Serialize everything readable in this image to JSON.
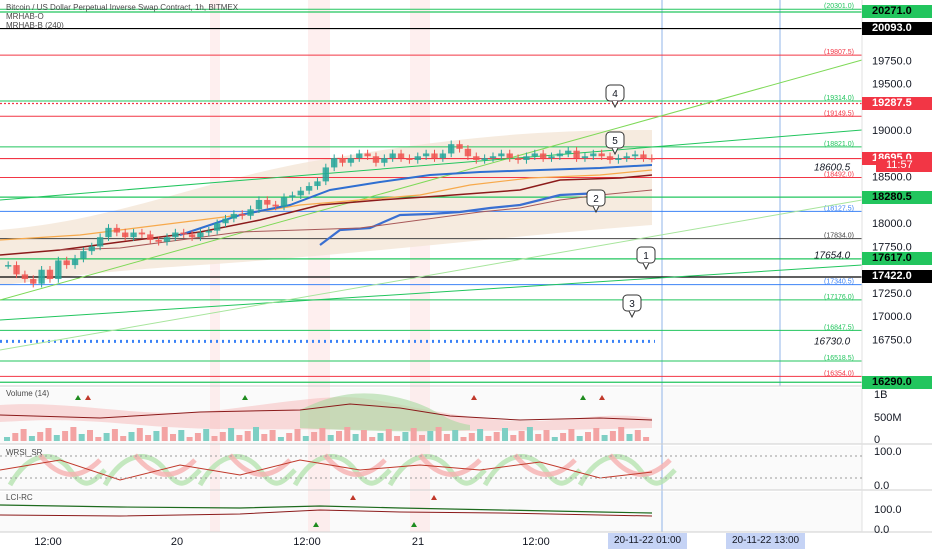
{
  "header": {
    "title": "Bitcoin / US Dollar Perpetual Inverse Swap Contract, 1h, BITMEX",
    "ind1": "MRHAB-O",
    "ind2": "MRHAB-B (240)"
  },
  "chart_data": {
    "type": "candlestick",
    "title": "Bitcoin / US Dollar Perpetual Inverse Swap Contract, 1h, BITMEX",
    "ylim": [
      16250,
      20400
    ],
    "y_ticks": [
      "19750.0",
      "19500.0",
      "19000.0",
      "18500.0",
      "18000.0",
      "17750.0",
      "17250.0",
      "17000.0",
      "16750.0"
    ],
    "y_tick_values": [
      19750,
      19500,
      19000,
      18500,
      18000,
      17750,
      17250,
      17000,
      16750
    ],
    "x_ticks": [
      "12:00",
      "20",
      "12:00",
      "21",
      "12:00"
    ],
    "price_tags": [
      {
        "text": "20271.0",
        "value": 20271,
        "bg": "#22c55e",
        "fg": "#000000"
      },
      {
        "text": "20093.0",
        "value": 20093,
        "bg": "#000000",
        "fg": "#ffffff"
      },
      {
        "text": "19287.5",
        "value": 19287.5,
        "bg": "#f23645",
        "fg": "#ffffff"
      },
      {
        "text": "18695.0",
        "value": 18695,
        "bg": "#f23645",
        "fg": "#ffffff"
      },
      {
        "text": "11:57",
        "value": 18625,
        "bg": "#f23645",
        "fg": "#ffffff"
      },
      {
        "text": "18280.5",
        "value": 18280.5,
        "bg": "#22c55e",
        "fg": "#000000"
      },
      {
        "text": "17617.0",
        "value": 17617,
        "bg": "#22c55e",
        "fg": "#000000"
      },
      {
        "text": "17422.0",
        "value": 17422,
        "bg": "#000000",
        "fg": "#ffffff"
      },
      {
        "text": "16290.0",
        "value": 16290,
        "bg": "#22c55e",
        "fg": "#000000"
      }
    ],
    "levels": [
      {
        "label": "(20301.0)",
        "value": 20301,
        "color": "#22c55e"
      },
      {
        "label": "(19807.5)",
        "value": 19807.5,
        "color": "#f23645"
      },
      {
        "label": "(19314.0)",
        "value": 19314,
        "color": "#22c55e"
      },
      {
        "label": "(19149.5)",
        "value": 19149.5,
        "color": "#f23645"
      },
      {
        "label": "(18821.0)",
        "value": 18821,
        "color": "#22c55e"
      },
      {
        "label": "(18492.0)",
        "value": 18492,
        "color": "#f23645"
      },
      {
        "label": "(18127.5)",
        "value": 18127.5,
        "color": "#3b82f6"
      },
      {
        "label": "(17834.0)",
        "value": 17834,
        "color": "#444444"
      },
      {
        "label": "(17340.5)",
        "value": 17340.5,
        "color": "#3b82f6"
      },
      {
        "label": "(17176.0)",
        "value": 17176,
        "color": "#22c55e"
      },
      {
        "label": "(16847.5)",
        "value": 16847.5,
        "color": "#22c55e"
      },
      {
        "label": "(16518.5)",
        "value": 16518.5,
        "color": "#22c55e"
      },
      {
        "label": "(16354.0)",
        "value": 16354,
        "color": "#f23645"
      }
    ],
    "chart_texts": [
      {
        "text": "18600.5",
        "value": 18600.5
      },
      {
        "text": "17654.0",
        "value": 17654
      },
      {
        "text": "16730.0",
        "value": 16730
      }
    ],
    "markers": [
      "4",
      "5",
      "2",
      "1",
      "3"
    ],
    "candles_close": [
      17550,
      17450,
      17400,
      17350,
      17500,
      17400,
      17600,
      17550,
      17620,
      17700,
      17750,
      17850,
      17950,
      17900,
      17850,
      17900,
      17880,
      17820,
      17800,
      17850,
      17900,
      17880,
      17850,
      17900,
      17920,
      18000,
      18050,
      18100,
      18080,
      18150,
      18250,
      18200,
      18180,
      18280,
      18300,
      18350,
      18400,
      18450,
      18600,
      18700,
      18650,
      18700,
      18750,
      18720,
      18650,
      18700,
      18750,
      18700,
      18680,
      18720,
      18750,
      18700,
      18750,
      18850,
      18800,
      18720,
      18680,
      18700,
      18720,
      18750,
      18700,
      18680,
      18720,
      18750,
      18700,
      18720,
      18750,
      18780,
      18700,
      18720,
      18750,
      18720,
      18680,
      18700,
      18720,
      18740,
      18700,
      18695
    ],
    "panels": [
      {
        "name": "Volume (14)",
        "ticks": [
          "1B",
          "500M",
          "0"
        ]
      },
      {
        "name": "WRSI_SR",
        "ticks": [
          "100.0",
          "0.0"
        ]
      },
      {
        "name": "LCI-RC",
        "ticks": [
          "100.0",
          "0.0"
        ]
      }
    ],
    "time_tags": [
      "20-11-22  01:00",
      "20-11-22  13:00"
    ]
  }
}
